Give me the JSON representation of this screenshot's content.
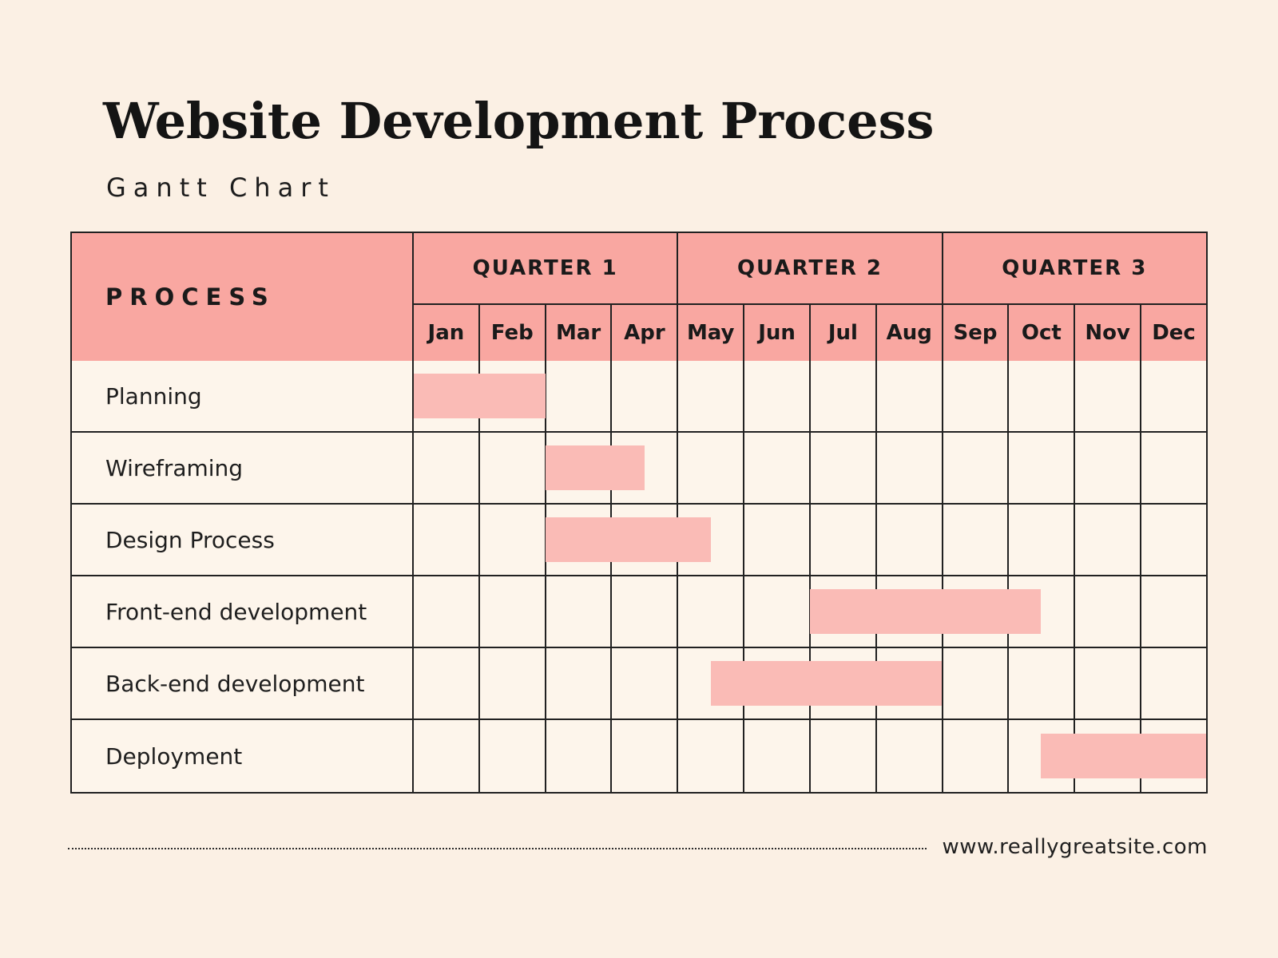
{
  "header": {
    "title": "Website Development Process",
    "subtitle": "Gantt Chart"
  },
  "footer": {
    "website": "www.reallygreatsite.com"
  },
  "colors": {
    "page_background": "#FBF0E4",
    "cell_background": "#FDF5EB",
    "header_pink": "#F9A7A1",
    "bar_pink": "#FABBB6",
    "grid_line": "#212121",
    "text": "#1A1A1A"
  },
  "chart_data": {
    "type": "bar",
    "subtype": "gantt",
    "title": "Website Development Process",
    "subtitle": "Gantt Chart",
    "process_header": "PROCESS",
    "x_axis": {
      "unit": "month",
      "labels": [
        "Jan",
        "Feb",
        "Mar",
        "Apr",
        "May",
        "Jun",
        "Jul",
        "Aug",
        "Sep",
        "Oct",
        "Nov",
        "Dec"
      ],
      "range": [
        0,
        12
      ],
      "groups": [
        {
          "label": "QUARTER 1",
          "months": [
            "Jan",
            "Feb",
            "Mar",
            "Apr"
          ]
        },
        {
          "label": "QUARTER 2",
          "months": [
            "May",
            "Jun",
            "Jul",
            "Aug"
          ]
        },
        {
          "label": "QUARTER 3",
          "months": [
            "Sep",
            "Oct",
            "Nov",
            "Dec"
          ]
        }
      ]
    },
    "tasks": [
      {
        "name": "Planning",
        "start": 0,
        "end": 2,
        "span": "Jan through Feb"
      },
      {
        "name": "Wireframing",
        "start": 2,
        "end": 3.5,
        "span": "Mar through mid-Apr"
      },
      {
        "name": "Design Process",
        "start": 2,
        "end": 4.5,
        "span": "Mar through mid-May"
      },
      {
        "name": "Front-end development",
        "start": 6,
        "end": 9.5,
        "span": "Jul through mid-Oct"
      },
      {
        "name": "Back-end development",
        "start": 4.5,
        "end": 8,
        "span": "mid-May through Aug"
      },
      {
        "name": "Deployment",
        "start": 9.5,
        "end": 12,
        "span": "mid-Oct through Dec"
      }
    ]
  }
}
